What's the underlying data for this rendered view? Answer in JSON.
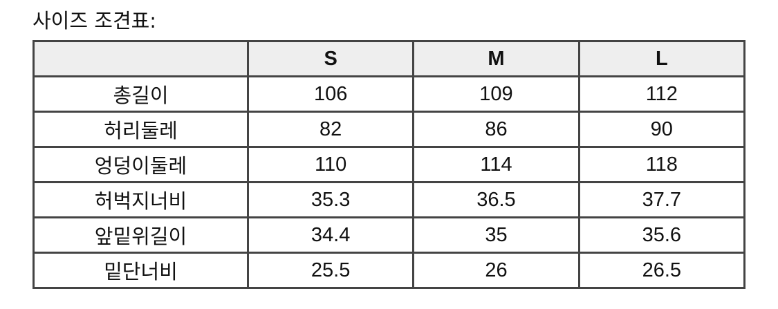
{
  "title": "사이즈 조견표:",
  "table": {
    "headers": [
      "",
      "S",
      "M",
      "L"
    ],
    "rows": [
      [
        "총길이",
        "106",
        "109",
        "112"
      ],
      [
        "허리둘레",
        "82",
        "86",
        "90"
      ],
      [
        "엉덩이둘레",
        "110",
        "114",
        "118"
      ],
      [
        "허벅지너비",
        "35.3",
        "36.5",
        "37.7"
      ],
      [
        "앞밑위길이",
        "34.4",
        "35",
        "35.6"
      ],
      [
        "밑단너비",
        "25.5",
        "26",
        "26.5"
      ]
    ]
  }
}
